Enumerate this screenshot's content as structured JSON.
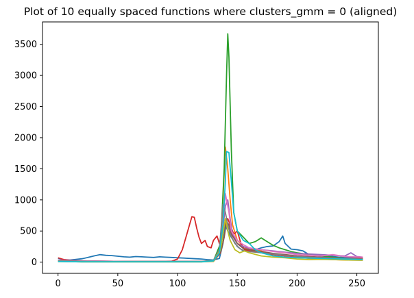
{
  "chart_data": {
    "type": "line",
    "title": "Plot of 10 equally spaced functions where clusters_gmm = 0 (aligned)",
    "xlabel": "",
    "ylabel": "",
    "xlim": [
      -13,
      268
    ],
    "ylim": [
      -180,
      3860
    ],
    "xticks": [
      0,
      50,
      100,
      150,
      200,
      250
    ],
    "yticks": [
      0,
      500,
      1000,
      1500,
      2000,
      2500,
      3000,
      3500
    ],
    "grid": false,
    "series": [
      {
        "color": "#1f77b4",
        "points": [
          [
            0,
            60
          ],
          [
            5,
            40
          ],
          [
            10,
            35
          ],
          [
            15,
            45
          ],
          [
            20,
            55
          ],
          [
            25,
            75
          ],
          [
            30,
            100
          ],
          [
            35,
            120
          ],
          [
            40,
            110
          ],
          [
            45,
            105
          ],
          [
            50,
            95
          ],
          [
            55,
            85
          ],
          [
            60,
            80
          ],
          [
            65,
            90
          ],
          [
            70,
            85
          ],
          [
            75,
            80
          ],
          [
            80,
            75
          ],
          [
            85,
            85
          ],
          [
            90,
            80
          ],
          [
            95,
            75
          ],
          [
            100,
            70
          ],
          [
            105,
            65
          ],
          [
            110,
            60
          ],
          [
            115,
            55
          ],
          [
            120,
            50
          ],
          [
            125,
            40
          ],
          [
            130,
            35
          ],
          [
            135,
            60
          ],
          [
            138,
            300
          ],
          [
            140,
            600
          ],
          [
            142,
            500
          ],
          [
            145,
            400
          ],
          [
            150,
            250
          ],
          [
            155,
            180
          ],
          [
            160,
            170
          ],
          [
            165,
            200
          ],
          [
            170,
            230
          ],
          [
            175,
            250
          ],
          [
            180,
            260
          ],
          [
            185,
            330
          ],
          [
            188,
            420
          ],
          [
            190,
            300
          ],
          [
            195,
            210
          ],
          [
            200,
            200
          ],
          [
            205,
            180
          ],
          [
            210,
            120
          ],
          [
            215,
            110
          ],
          [
            220,
            100
          ],
          [
            225,
            110
          ],
          [
            230,
            90
          ],
          [
            235,
            80
          ],
          [
            240,
            75
          ],
          [
            245,
            70
          ],
          [
            250,
            65
          ],
          [
            255,
            60
          ]
        ]
      },
      {
        "color": "#ff7f0e",
        "points": [
          [
            0,
            10
          ],
          [
            20,
            5
          ],
          [
            40,
            5
          ],
          [
            60,
            5
          ],
          [
            80,
            5
          ],
          [
            100,
            5
          ],
          [
            120,
            5
          ],
          [
            130,
            10
          ],
          [
            136,
            150
          ],
          [
            140,
            1850
          ],
          [
            142,
            1500
          ],
          [
            144,
            1000
          ],
          [
            146,
            600
          ],
          [
            150,
            350
          ],
          [
            155,
            250
          ],
          [
            160,
            200
          ],
          [
            165,
            210
          ],
          [
            170,
            180
          ],
          [
            175,
            150
          ],
          [
            180,
            130
          ],
          [
            190,
            110
          ],
          [
            200,
            80
          ],
          [
            210,
            60
          ],
          [
            220,
            50
          ],
          [
            230,
            40
          ],
          [
            240,
            35
          ],
          [
            255,
            30
          ]
        ]
      },
      {
        "color": "#2ca02c",
        "points": [
          [
            0,
            20
          ],
          [
            20,
            10
          ],
          [
            40,
            10
          ],
          [
            60,
            10
          ],
          [
            80,
            10
          ],
          [
            100,
            10
          ],
          [
            120,
            10
          ],
          [
            130,
            20
          ],
          [
            136,
            300
          ],
          [
            139,
            1500
          ],
          [
            141,
            3000
          ],
          [
            142,
            3670
          ],
          [
            143,
            3300
          ],
          [
            145,
            1800
          ],
          [
            147,
            800
          ],
          [
            150,
            500
          ],
          [
            155,
            400
          ],
          [
            160,
            300
          ],
          [
            165,
            330
          ],
          [
            170,
            390
          ],
          [
            175,
            330
          ],
          [
            180,
            270
          ],
          [
            185,
            230
          ],
          [
            190,
            200
          ],
          [
            195,
            170
          ],
          [
            200,
            150
          ],
          [
            210,
            120
          ],
          [
            220,
            100
          ],
          [
            230,
            80
          ],
          [
            240,
            60
          ],
          [
            255,
            50
          ]
        ]
      },
      {
        "color": "#d62728",
        "points": [
          [
            0,
            70
          ],
          [
            5,
            40
          ],
          [
            10,
            30
          ],
          [
            20,
            20
          ],
          [
            40,
            15
          ],
          [
            60,
            10
          ],
          [
            80,
            10
          ],
          [
            95,
            15
          ],
          [
            100,
            50
          ],
          [
            104,
            200
          ],
          [
            107,
            400
          ],
          [
            110,
            600
          ],
          [
            112,
            730
          ],
          [
            114,
            720
          ],
          [
            116,
            550
          ],
          [
            118,
            400
          ],
          [
            120,
            300
          ],
          [
            123,
            350
          ],
          [
            125,
            250
          ],
          [
            128,
            230
          ],
          [
            130,
            350
          ],
          [
            133,
            420
          ],
          [
            135,
            300
          ],
          [
            138,
            550
          ],
          [
            140,
            620
          ],
          [
            142,
            700
          ],
          [
            145,
            550
          ],
          [
            147,
            450
          ],
          [
            150,
            500
          ],
          [
            153,
            300
          ],
          [
            156,
            200
          ],
          [
            160,
            180
          ],
          [
            170,
            150
          ],
          [
            180,
            120
          ],
          [
            190,
            100
          ],
          [
            200,
            90
          ],
          [
            220,
            70
          ],
          [
            240,
            60
          ],
          [
            255,
            60
          ]
        ]
      },
      {
        "color": "#9467bd",
        "points": [
          [
            0,
            30
          ],
          [
            20,
            20
          ],
          [
            40,
            15
          ],
          [
            60,
            10
          ],
          [
            80,
            10
          ],
          [
            100,
            10
          ],
          [
            120,
            10
          ],
          [
            130,
            20
          ],
          [
            136,
            200
          ],
          [
            140,
            900
          ],
          [
            142,
            1000
          ],
          [
            144,
            700
          ],
          [
            146,
            450
          ],
          [
            150,
            300
          ],
          [
            155,
            250
          ],
          [
            160,
            220
          ],
          [
            170,
            200
          ],
          [
            180,
            180
          ],
          [
            190,
            160
          ],
          [
            200,
            140
          ],
          [
            210,
            130
          ],
          [
            220,
            120
          ],
          [
            230,
            110
          ],
          [
            240,
            100
          ],
          [
            245,
            150
          ],
          [
            250,
            90
          ],
          [
            255,
            80
          ]
        ]
      },
      {
        "color": "#8c564b",
        "points": [
          [
            0,
            20
          ],
          [
            20,
            15
          ],
          [
            40,
            10
          ],
          [
            60,
            10
          ],
          [
            80,
            10
          ],
          [
            100,
            10
          ],
          [
            120,
            10
          ],
          [
            130,
            20
          ],
          [
            136,
            150
          ],
          [
            139,
            400
          ],
          [
            141,
            650
          ],
          [
            143,
            600
          ],
          [
            145,
            450
          ],
          [
            150,
            300
          ],
          [
            155,
            220
          ],
          [
            160,
            200
          ],
          [
            170,
            170
          ],
          [
            180,
            140
          ],
          [
            190,
            120
          ],
          [
            200,
            100
          ],
          [
            220,
            80
          ],
          [
            240,
            60
          ],
          [
            255,
            50
          ]
        ]
      },
      {
        "color": "#e377c2",
        "points": [
          [
            0,
            30
          ],
          [
            20,
            20
          ],
          [
            40,
            15
          ],
          [
            60,
            10
          ],
          [
            80,
            10
          ],
          [
            100,
            10
          ],
          [
            120,
            10
          ],
          [
            130,
            20
          ],
          [
            136,
            200
          ],
          [
            140,
            1100
          ],
          [
            141,
            1000
          ],
          [
            143,
            800
          ],
          [
            145,
            500
          ],
          [
            150,
            350
          ],
          [
            155,
            280
          ],
          [
            160,
            230
          ],
          [
            170,
            200
          ],
          [
            180,
            170
          ],
          [
            190,
            150
          ],
          [
            200,
            120
          ],
          [
            210,
            110
          ],
          [
            220,
            100
          ],
          [
            230,
            120
          ],
          [
            240,
            90
          ],
          [
            255,
            80
          ]
        ]
      },
      {
        "color": "#7f7f7f",
        "points": [
          [
            0,
            20
          ],
          [
            20,
            15
          ],
          [
            40,
            10
          ],
          [
            60,
            10
          ],
          [
            80,
            10
          ],
          [
            100,
            10
          ],
          [
            120,
            10
          ],
          [
            130,
            30
          ],
          [
            135,
            200
          ],
          [
            138,
            930
          ],
          [
            140,
            800
          ],
          [
            142,
            600
          ],
          [
            144,
            450
          ],
          [
            148,
            300
          ],
          [
            152,
            220
          ],
          [
            156,
            180
          ],
          [
            160,
            170
          ],
          [
            170,
            150
          ],
          [
            180,
            130
          ],
          [
            190,
            110
          ],
          [
            200,
            90
          ],
          [
            220,
            70
          ],
          [
            240,
            60
          ],
          [
            255,
            50
          ]
        ]
      },
      {
        "color": "#bcbd22",
        "points": [
          [
            0,
            10
          ],
          [
            20,
            5
          ],
          [
            40,
            5
          ],
          [
            60,
            5
          ],
          [
            80,
            5
          ],
          [
            100,
            5
          ],
          [
            120,
            5
          ],
          [
            130,
            15
          ],
          [
            136,
            200
          ],
          [
            140,
            700
          ],
          [
            142,
            500
          ],
          [
            144,
            350
          ],
          [
            148,
            200
          ],
          [
            152,
            150
          ],
          [
            156,
            180
          ],
          [
            160,
            150
          ],
          [
            170,
            100
          ],
          [
            180,
            80
          ],
          [
            190,
            70
          ],
          [
            200,
            50
          ],
          [
            210,
            40
          ],
          [
            220,
            45
          ],
          [
            230,
            40
          ],
          [
            240,
            35
          ],
          [
            255,
            30
          ]
        ]
      },
      {
        "color": "#17becf",
        "points": [
          [
            0,
            10
          ],
          [
            20,
            5
          ],
          [
            40,
            5
          ],
          [
            60,
            5
          ],
          [
            80,
            5
          ],
          [
            100,
            5
          ],
          [
            120,
            5
          ],
          [
            130,
            20
          ],
          [
            135,
            150
          ],
          [
            138,
            600
          ],
          [
            140,
            1300
          ],
          [
            141,
            1780
          ],
          [
            143,
            1760
          ],
          [
            145,
            1300
          ],
          [
            147,
            800
          ],
          [
            150,
            500
          ],
          [
            155,
            350
          ],
          [
            160,
            300
          ],
          [
            165,
            200
          ],
          [
            170,
            150
          ],
          [
            180,
            100
          ],
          [
            190,
            80
          ],
          [
            200,
            70
          ],
          [
            220,
            60
          ],
          [
            240,
            50
          ],
          [
            255,
            40
          ]
        ]
      }
    ]
  }
}
